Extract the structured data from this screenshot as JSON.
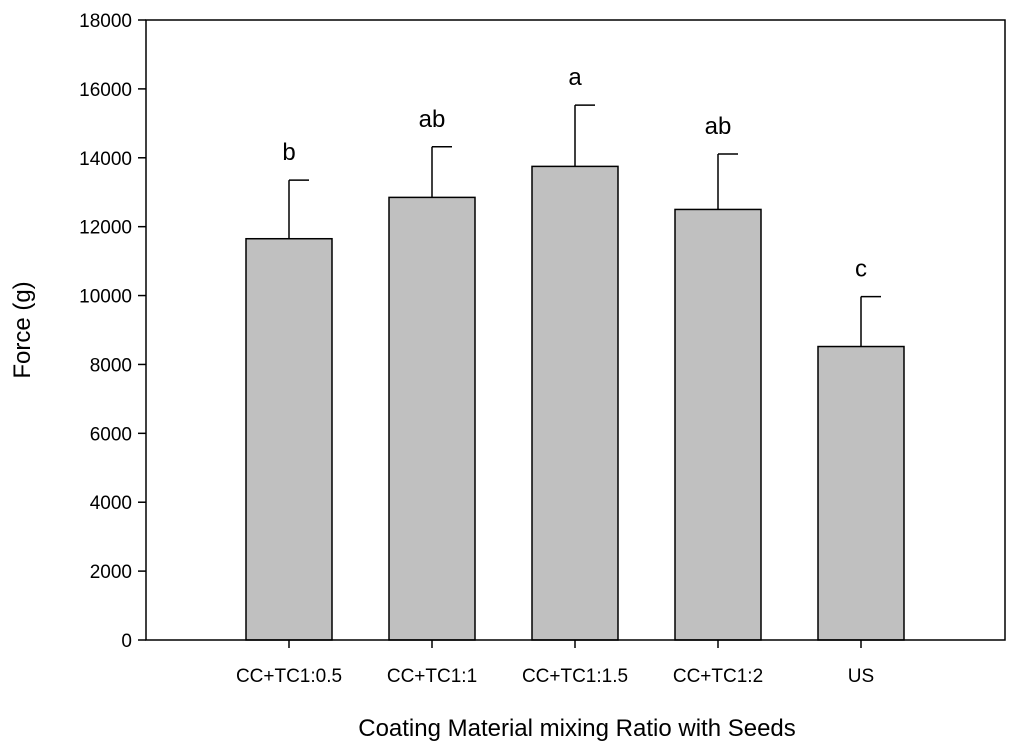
{
  "chart_data": {
    "type": "bar",
    "title": "",
    "xlabel": "Coating Material mixing Ratio with Seeds",
    "ylabel": "Force (g)",
    "ylim": [
      0,
      18000
    ],
    "yticks": [
      0,
      2000,
      4000,
      6000,
      8000,
      10000,
      12000,
      14000,
      16000,
      18000
    ],
    "categories": [
      "CC+TC1:0.5",
      "CC+TC1:1",
      "CC+TC1:1.5",
      "CC+TC1:2",
      "US"
    ],
    "values": [
      11650,
      12850,
      13750,
      12500,
      8520
    ],
    "error_plus": [
      1700,
      1470,
      1780,
      1610,
      1450
    ],
    "significance_letters": [
      "b",
      "ab",
      "a",
      "ab",
      "c"
    ],
    "grid": false,
    "legend": "none",
    "bar_color": "#c0c0c0",
    "edge_color": "#000000"
  }
}
